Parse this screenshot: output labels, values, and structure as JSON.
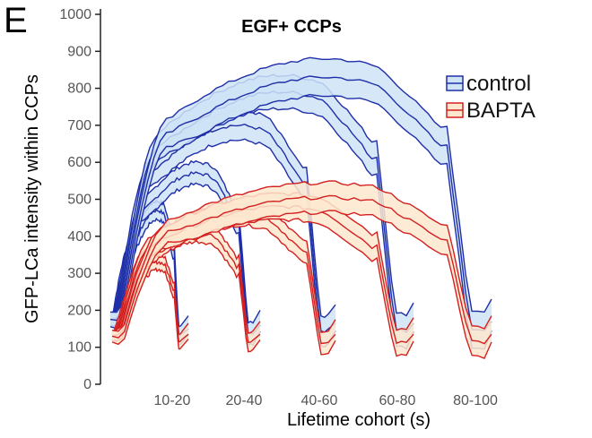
{
  "panel_label": "E",
  "chart_data": {
    "type": "area",
    "title": "EGF+ CCPs",
    "xlabel": "Lifetime cohort (s)",
    "ylabel": "GFP-LCa intensity within CCPs",
    "ylim": [
      0,
      1000
    ],
    "yticks": [
      0,
      100,
      200,
      300,
      400,
      500,
      600,
      700,
      800,
      900,
      1000
    ],
    "categories": [
      "10-20",
      "20-40",
      "40-60",
      "60-80",
      "80-100"
    ],
    "grid": false,
    "legend_position": "top-right",
    "series": [
      {
        "name": "control",
        "color": "#1f2fa8",
        "fill": "#cfe3f7",
        "cohorts": [
          {
            "cohort": "10-20",
            "start": 175,
            "peak": 470,
            "end": 130,
            "width": 25
          },
          {
            "cohort": "20-40",
            "start": 175,
            "peak": 570,
            "end": 140,
            "width": 30
          },
          {
            "cohort": "40-60",
            "start": 175,
            "peak": 700,
            "end": 145,
            "width": 40
          },
          {
            "cohort": "60-80",
            "start": 175,
            "peak": 790,
            "end": 145,
            "width": 45
          },
          {
            "cohort": "80-100",
            "start": 175,
            "peak": 830,
            "end": 150,
            "width": 50
          }
        ]
      },
      {
        "name": "BAPTA",
        "color": "#d42020",
        "fill": "#fde8cf",
        "cohorts": [
          {
            "cohort": "10-20",
            "start": 130,
            "peak": 330,
            "end": 115,
            "width": 20
          },
          {
            "cohort": "20-40",
            "start": 130,
            "peak": 410,
            "end": 115,
            "width": 25
          },
          {
            "cohort": "40-60",
            "start": 130,
            "peak": 460,
            "end": 115,
            "width": 30
          },
          {
            "cohort": "60-80",
            "start": 130,
            "peak": 480,
            "end": 115,
            "width": 35
          },
          {
            "cohort": "80-100",
            "start": 130,
            "peak": 505,
            "end": 115,
            "width": 40
          }
        ]
      }
    ]
  }
}
